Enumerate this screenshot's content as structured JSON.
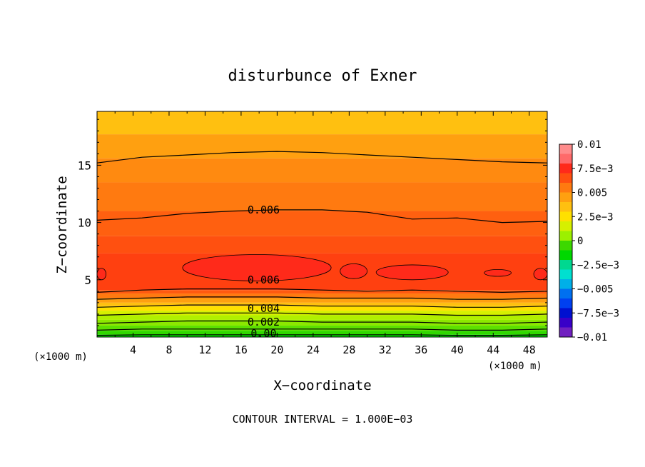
{
  "chart_data": {
    "type": "heatmap",
    "subtype": "filled-contour",
    "title": "disturbunce of Exner",
    "xlabel": "X−coordinate",
    "ylabel": "Z−coordinate",
    "x_unit_left": "(×1000 m)",
    "x_unit_right": "(×1000 m)",
    "footer": "CONTOUR INTERVAL = 1.000E−03",
    "xlim": [
      0,
      50
    ],
    "ylim": [
      0,
      19.7
    ],
    "x_ticks": [
      4,
      8,
      12,
      16,
      20,
      24,
      28,
      32,
      36,
      40,
      44,
      48
    ],
    "y_ticks": [
      5,
      10,
      15
    ],
    "contour_interval": 0.001,
    "contour_labels": [
      {
        "text": "0.006",
        "x": 18.5,
        "z": 11.1
      },
      {
        "text": "0.006",
        "x": 18.5,
        "z": 5.0
      },
      {
        "text": "0.004",
        "x": 18.5,
        "z": 2.5
      },
      {
        "text": "0.002",
        "x": 18.5,
        "z": 1.3
      },
      {
        "text": "0.00",
        "x": 18.5,
        "z": 0.3
      }
    ],
    "contour_lines": [
      {
        "level": 0.005,
        "z": [
          15.2,
          15.7,
          15.9,
          16.1,
          16.2,
          16.1,
          15.9,
          15.7,
          15.5,
          15.3,
          15.2
        ]
      },
      {
        "level": 0.006,
        "z": [
          10.2,
          10.4,
          10.8,
          11.0,
          11.1,
          11.1,
          10.9,
          10.3,
          10.4,
          10.0,
          10.1
        ]
      },
      {
        "level": 0.006,
        "z": [
          3.9,
          4.1,
          4.2,
          4.2,
          4.2,
          4.1,
          4.0,
          4.1,
          4.0,
          3.9,
          4.0
        ]
      },
      {
        "level": 0.005,
        "z": [
          3.3,
          3.4,
          3.5,
          3.5,
          3.5,
          3.4,
          3.4,
          3.4,
          3.3,
          3.3,
          3.4
        ]
      },
      {
        "level": 0.004,
        "z": [
          2.6,
          2.7,
          2.8,
          2.8,
          2.8,
          2.7,
          2.7,
          2.7,
          2.6,
          2.6,
          2.7
        ]
      },
      {
        "level": 0.003,
        "z": [
          1.9,
          2.0,
          2.1,
          2.1,
          2.1,
          2.0,
          2.0,
          2.0,
          1.9,
          1.9,
          2.0
        ]
      },
      {
        "level": 0.002,
        "z": [
          1.2,
          1.3,
          1.4,
          1.4,
          1.4,
          1.3,
          1.3,
          1.3,
          1.2,
          1.2,
          1.3
        ]
      },
      {
        "level": 0.001,
        "z": [
          0.6,
          0.7,
          0.7,
          0.7,
          0.7,
          0.7,
          0.7,
          0.7,
          0.6,
          0.6,
          0.7
        ]
      },
      {
        "level": 0.0,
        "z": [
          0.15,
          0.2,
          0.2,
          0.2,
          0.2,
          0.2,
          0.2,
          0.2,
          0.15,
          0.15,
          0.2
        ]
      }
    ],
    "max_cells": [
      {
        "x": [
          9.5,
          26
        ],
        "z": [
          4.9,
          7.2
        ]
      },
      {
        "x": [
          27,
          30
        ],
        "z": [
          5.1,
          6.4
        ]
      },
      {
        "x": [
          31,
          39
        ],
        "z": [
          5.0,
          6.3
        ]
      },
      {
        "x": [
          43,
          46
        ],
        "z": [
          5.3,
          5.9
        ]
      },
      {
        "x": [
          48.5,
          50
        ],
        "z": [
          5.0,
          6.0
        ]
      },
      {
        "x": [
          0,
          1
        ],
        "z": [
          5.0,
          6.0
        ]
      }
    ],
    "colorbar": {
      "labels": [
        "0.01",
        "7.5e−3",
        "0.005",
        "2.5e−3",
        "0",
        "−2.5e−3",
        "−0.005",
        "−7.5e−3",
        "−0.01"
      ],
      "levels": [
        0.01,
        0.0075,
        0.005,
        0.0025,
        0,
        -0.0025,
        -0.005,
        -0.0075,
        -0.01
      ],
      "colors_top_to_bottom": [
        "#ff8c8c",
        "#ff6a6a",
        "#ff2a1a",
        "#ff5010",
        "#ff7a10",
        "#ffa010",
        "#ffc010",
        "#ffe000",
        "#d6f000",
        "#9cf000",
        "#3cd800",
        "#00d800",
        "#00d890",
        "#00e0d0",
        "#00b0e8",
        "#0070f0",
        "#0040f0",
        "#0010d0",
        "#3800c8",
        "#7020c0"
      ]
    }
  }
}
